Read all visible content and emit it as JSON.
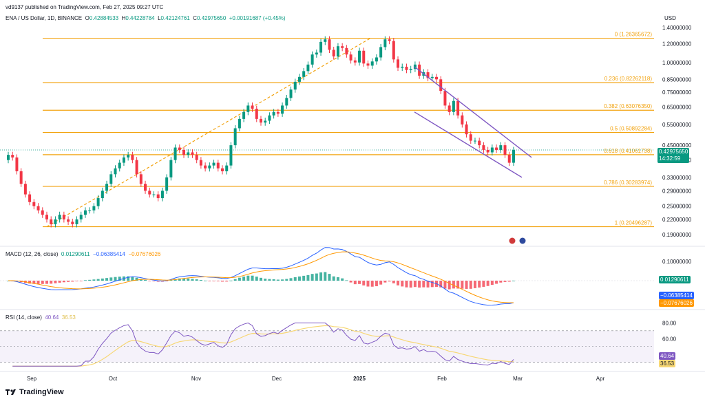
{
  "header": {
    "published": "vd9137 published on TradingView.com, Feb 27, 2025 09:27 UTC",
    "currency": "USD",
    "symbol_line": "ENA / US Dollar, 1D, BINANCE",
    "ohlc": {
      "o_label": "O",
      "o": "0.42884533",
      "h_label": "H",
      "h": "0.44228784",
      "l_label": "L",
      "l": "0.42124761",
      "c_label": "C",
      "c": "0.42975650",
      "change": "+0.00191687 (+0.45%)"
    }
  },
  "price_badge": {
    "price": "0.42975650",
    "countdown": "14:32:59"
  },
  "macd_label": {
    "name": "MACD (12, 26, close)",
    "v1": "0.01290611",
    "v2": "−0.06385414",
    "v3": "−0.07676026"
  },
  "macd_badges": {
    "hist": "0.01290611",
    "macd": "−0.06385414",
    "signal": "−0.07676026"
  },
  "rsi_label": {
    "name": "RSI (14, close)",
    "v1": "40.64",
    "v2": "36.53"
  },
  "rsi_badges": {
    "rsi": "40.64",
    "ma": "36.53"
  },
  "footer": {
    "brand": "TradingView"
  },
  "colors": {
    "up": "#089981",
    "down": "#f23645",
    "fib": "#f2a30f",
    "channel": "#7e57c2",
    "macd": "#2962ff",
    "signal": "#ff9800",
    "rsi": "#7e57c2",
    "rsi_ma": "#f7d774"
  },
  "chart_data": [
    {
      "type": "candlestick",
      "title": "ENA / US Dollar, 1D, BINANCE",
      "x_labels": [
        "Sep",
        "Oct",
        "Nov",
        "Dec",
        "2025",
        "Feb",
        "Mar",
        "Apr"
      ],
      "y_ticks": [
        "1.40000000",
        "1.20000000",
        "1.00000000",
        "0.85000000",
        "0.75000000",
        "0.65000000",
        "0.55000000",
        "0.45000000",
        "0.39000000",
        "0.33000000",
        "0.29000000",
        "0.25000000",
        "0.22000000",
        "0.19000000"
      ],
      "y_scale": "log",
      "last_close": 0.4297565,
      "fib_levels": [
        {
          "label": "0 (1.26365672)",
          "value": 1.26365672
        },
        {
          "label": "0.236 (0.82262118)",
          "value": 0.82262118
        },
        {
          "label": "0.382 (0.63076350)",
          "value": 0.6307635
        },
        {
          "label": "0.5 (0.50892284)",
          "value": 0.50892284
        },
        {
          "label": "0.618 (0.41061738)",
          "value": 0.41061738
        },
        {
          "label": "0.786 (0.30283974)",
          "value": 0.30283974
        },
        {
          "label": "1 (0.20496287)",
          "value": 0.20496287
        }
      ],
      "closes": [
        0.41,
        0.4,
        0.35,
        0.31,
        0.28,
        0.26,
        0.25,
        0.24,
        0.23,
        0.22,
        0.21,
        0.22,
        0.23,
        0.22,
        0.215,
        0.21,
        0.22,
        0.23,
        0.24,
        0.24,
        0.25,
        0.27,
        0.29,
        0.31,
        0.34,
        0.36,
        0.38,
        0.4,
        0.41,
        0.39,
        0.34,
        0.31,
        0.29,
        0.28,
        0.28,
        0.27,
        0.29,
        0.33,
        0.39,
        0.44,
        0.43,
        0.41,
        0.42,
        0.41,
        0.39,
        0.37,
        0.36,
        0.37,
        0.38,
        0.36,
        0.35,
        0.37,
        0.45,
        0.53,
        0.58,
        0.62,
        0.66,
        0.64,
        0.58,
        0.56,
        0.57,
        0.6,
        0.62,
        0.61,
        0.66,
        0.71,
        0.77,
        0.83,
        0.87,
        0.92,
        0.98,
        1.08,
        1.1,
        1.22,
        1.25,
        1.13,
        1.06,
        1.17,
        1.15,
        1.08,
        1.02,
        1.0,
        1.12,
        0.99,
        0.97,
        1.01,
        1.05,
        1.16,
        1.25,
        1.23,
        1.03,
        0.95,
        0.96,
        0.93,
        0.94,
        0.98,
        0.88,
        0.91,
        0.86,
        0.87,
        0.85,
        0.76,
        0.66,
        0.62,
        0.69,
        0.6,
        0.55,
        0.5,
        0.47,
        0.47,
        0.45,
        0.43,
        0.42,
        0.44,
        0.43,
        0.45,
        0.41,
        0.38,
        0.43
      ],
      "fib_anchor": {
        "from": 0.20496287,
        "to": 1.26365672
      },
      "channel": {
        "upper": [
          0.96,
          0.4
        ],
        "lower": [
          0.62,
          0.33
        ]
      }
    },
    {
      "type": "line",
      "title": "MACD (12, 26, close)",
      "series": [
        {
          "name": "MACD",
          "last": -0.06385414
        },
        {
          "name": "Signal",
          "last": -0.07676026
        },
        {
          "name": "Histogram",
          "last": 0.01290611
        }
      ],
      "y_ticks": [
        "0.10000000"
      ]
    },
    {
      "type": "line",
      "title": "RSI (14, close)",
      "series": [
        {
          "name": "RSI",
          "last": 40.64
        },
        {
          "name": "RSI MA",
          "last": 36.53
        }
      ],
      "y_ticks": [
        "80.00",
        "60.00"
      ],
      "ylim": [
        0,
        100
      ]
    }
  ]
}
